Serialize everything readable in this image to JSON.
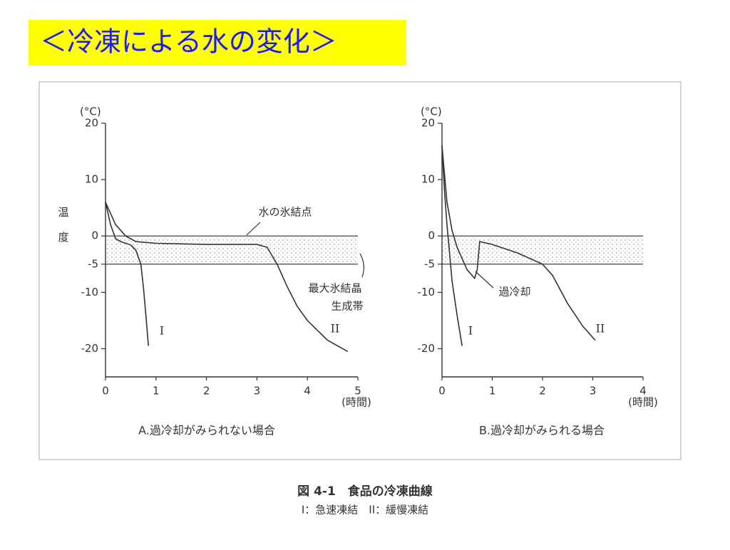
{
  "slide_title": "＜冷凍による水の変化＞",
  "caption": {
    "title": "図 4-1　食品の冷凍曲線",
    "note": "I：急速凍結　II：緩慢凍結"
  },
  "chart_data": [
    {
      "type": "line",
      "title": "A.過冷却がみられない場合",
      "y_unit": "(°C)",
      "y_label": "温度",
      "x_label": "(時間)",
      "xlim": [
        0,
        5
      ],
      "xticks": [
        0,
        1,
        2,
        3,
        4,
        5
      ],
      "ylim": [
        -25,
        20
      ],
      "yticks": [
        20,
        10,
        0,
        -5,
        -10,
        -20
      ],
      "shaded_band": [
        -5,
        0
      ],
      "color": "#333333",
      "annotations": [
        "水の氷結点",
        "最大氷結晶",
        "生成帯"
      ],
      "series": [
        {
          "name": "I",
          "x": [
            0,
            0.1,
            0.2,
            0.3,
            0.4,
            0.5,
            0.6,
            0.7,
            0.75,
            0.8,
            0.85
          ],
          "values": [
            6,
            2,
            -0.5,
            -1,
            -1.3,
            -1.6,
            -2.5,
            -5,
            -9,
            -14,
            -19.5
          ]
        },
        {
          "name": "II",
          "x": [
            0,
            0.2,
            0.4,
            0.6,
            1,
            2,
            3,
            3.2,
            3.4,
            3.6,
            3.8,
            4,
            4.4,
            4.8
          ],
          "values": [
            6,
            2,
            0,
            -1,
            -1.3,
            -1.5,
            -1.5,
            -2,
            -5,
            -9,
            -12.5,
            -15,
            -18.5,
            -20.5
          ]
        }
      ]
    },
    {
      "type": "line",
      "title": "B.過冷却がみられる場合",
      "y_unit": "(°C)",
      "x_label": "(時間)",
      "xlim": [
        0,
        4
      ],
      "xticks": [
        0,
        1,
        2,
        3,
        4
      ],
      "ylim": [
        -25,
        20
      ],
      "yticks": [
        20,
        10,
        0,
        -5,
        -10,
        -20
      ],
      "shaded_band": [
        -5,
        0
      ],
      "color": "#333333",
      "annotations": [
        "過冷却"
      ],
      "series": [
        {
          "name": "I",
          "x": [
            0,
            0.05,
            0.1,
            0.15,
            0.2,
            0.3,
            0.4
          ],
          "values": [
            16,
            8,
            2,
            -3,
            -8,
            -14,
            -19.5
          ]
        },
        {
          "name": "II",
          "x": [
            0,
            0.1,
            0.2,
            0.3,
            0.4,
            0.5,
            0.65,
            0.7,
            0.75,
            1,
            1.5,
            2,
            2.2,
            2.5,
            2.8,
            3.05
          ],
          "values": [
            16,
            6,
            1,
            -2,
            -4,
            -6,
            -7.5,
            -6,
            -1,
            -1.5,
            -3,
            -5,
            -7,
            -12,
            -16,
            -18.5
          ]
        }
      ]
    }
  ]
}
